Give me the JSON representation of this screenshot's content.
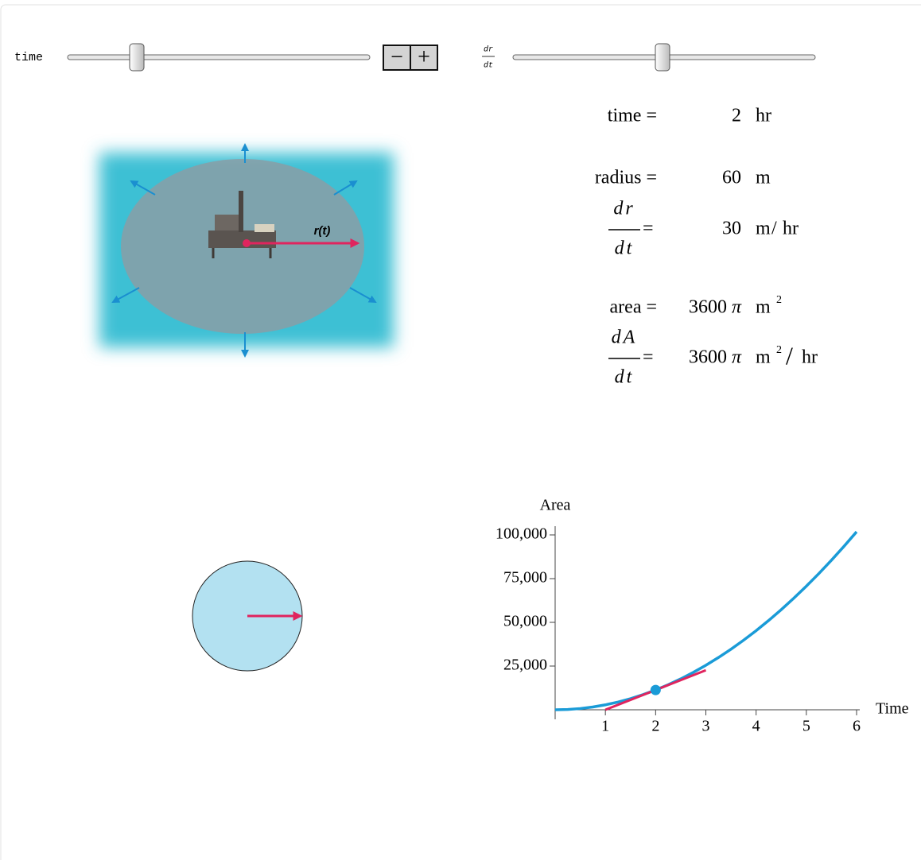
{
  "controls": {
    "time_label": "time",
    "rate_label": {
      "numerator": "dr",
      "denominator": "dt"
    },
    "minus": "−",
    "plus": "+"
  },
  "illustration": {
    "label": "r(t)"
  },
  "readouts": [
    {
      "label": "time =",
      "value": 2,
      "unit": "hr"
    },
    {
      "label": "radius =",
      "value": 60,
      "unit": "m"
    },
    {
      "numerator": "dr",
      "denominator": "dt",
      "eq": "=",
      "value": 30,
      "unit": "m",
      "sep": "/",
      "per": "hr"
    },
    {
      "label": "area =",
      "value": 3600,
      "factor": "π",
      "unit": "m",
      "exp": "2"
    },
    {
      "numerator": "dA",
      "denominator": "dt",
      "eq": "=",
      "value": 3600,
      "factor": "π",
      "unit": "m",
      "exp": "2",
      "sep": "/",
      "per": "hr"
    }
  ],
  "chart_data": {
    "type": "line",
    "y_label": "Area",
    "x_label": "Time",
    "xlim": [
      0,
      6
    ],
    "ylim": [
      0,
      105000
    ],
    "xticks": [
      1,
      2,
      3,
      4,
      5,
      6
    ],
    "yticks": [
      {
        "value": 25000,
        "label": "25,000"
      },
      {
        "value": 50000,
        "label": "50,000"
      },
      {
        "value": 75000,
        "label": "75,000"
      },
      {
        "value": 100000,
        "label": "100,000"
      }
    ],
    "series": [
      {
        "color": "#1a9bd7",
        "x": [
          0,
          0.25,
          0.5,
          0.75,
          1,
          1.25,
          1.5,
          1.75,
          2,
          2.25,
          2.5,
          2.75,
          3,
          3.25,
          3.5,
          3.75,
          4,
          4.25,
          4.5,
          4.75,
          5,
          5.25,
          5.5,
          5.75,
          6
        ],
        "values": [
          0,
          177,
          707,
          1590,
          2827,
          4418,
          6362,
          8659,
          11310,
          14314,
          17671,
          21382,
          25447,
          29865,
          34636,
          39761,
          45239,
          51071,
          57256,
          63794,
          70686,
          77931,
          85530,
          93482,
          101788
        ]
      }
    ],
    "point": {
      "x": 2,
      "y": 11310,
      "color": "#1a9bd7"
    },
    "tangent": {
      "x": [
        1,
        3
      ],
      "values": [
        0,
        22619
      ],
      "color": "#e0245e"
    }
  }
}
